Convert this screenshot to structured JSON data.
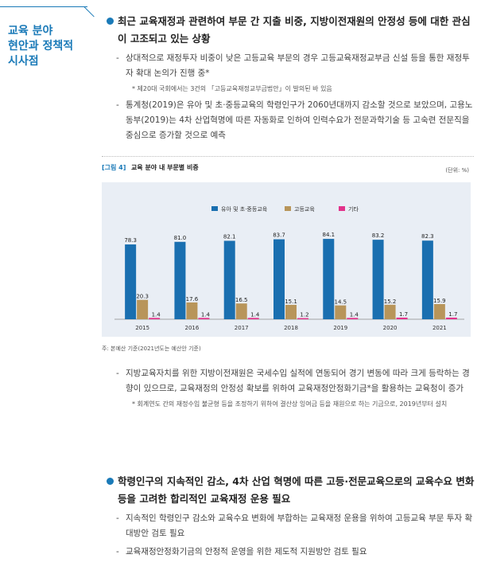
{
  "sidebar": {
    "title_lines": [
      "교육 분야",
      "현안과 정책적",
      "시사점"
    ]
  },
  "top": {
    "heading": "최근 교육재정과 관련하여 부문 간 지출 비중, 지방이전재원의 안정성 등에 대한 관심이 고조되고 있는 상황",
    "items": [
      {
        "text": "상대적으로 재정투자 비중이 낮은 고등교육 부문의 경우 고등교육재정교부금 신설 등을 통한 재정투자 확대 논의가 진행 중*"
      },
      {
        "note": "* 제20대 국회에서는 3건의 「고등교육재정교부금법안」이 발의된 바 있음"
      },
      {
        "text": "통계청(2019)은 유아 및 초·중등교육의 학령인구가 2060년대까지 감소할 것으로 보았으며, 고용노동부(2019)는 4차 산업혁명에 따른 자동화로 인하여 인력수요가 전문과학기술 등 고숙련 전문직을 중심으로 증가할 것으로 예측"
      }
    ]
  },
  "figure": {
    "label": "[그림 4]",
    "title": "교육 분야 내 부문별 비중",
    "unit": "(단위: %)",
    "source": "주: 본예산 기준(2021년도는 예산안 기준)"
  },
  "chart_data": {
    "type": "bar",
    "categories": [
      "2015",
      "2016",
      "2017",
      "2018",
      "2019",
      "2020",
      "2021"
    ],
    "series": [
      {
        "name": "유아 및 초·중등교육",
        "values": [
          78.3,
          81.0,
          82.1,
          83.7,
          84.1,
          83.2,
          82.3
        ],
        "color": "#1a6fb0"
      },
      {
        "name": "고등교육",
        "values": [
          20.3,
          17.6,
          16.5,
          15.1,
          14.5,
          15.2,
          15.9
        ],
        "color": "#b8955a"
      },
      {
        "name": "기타",
        "values": [
          1.4,
          1.4,
          1.4,
          1.2,
          1.4,
          1.7,
          1.7
        ],
        "color": "#e2338b"
      }
    ],
    "ylim": [
      0,
      100
    ],
    "grid": false,
    "legend": "top-center"
  },
  "middle": {
    "items": [
      {
        "text": "지방교육자치를 위한 지방이전재원은 국세수입 실적에 연동되어 경기 변동에 따라 크게 등락하는 경향이 있으므로, 교육재정의 안정성 확보를 위하여 교육재정안정화기금*을 활용하는 교육청이 증가"
      },
      {
        "note": "* 회계연도 간의 재정수입 불균형 등을 조정하기 위하여 결산상 잉여금 등을 재원으로 하는 기금으로, 2019년부터 설치"
      }
    ]
  },
  "bottom": {
    "heading": "학령인구의 지속적인 감소, 4차 산업 혁명에 따른 고등·전문교육으로의 교육수요 변화 등을 고려한 합리적인 교육재정 운용 필요",
    "items": [
      {
        "text": "지속적인 학령인구 감소와 교육수요 변화에 부합하는 교육재정 운용을 위하여 고등교육 부문 투자 확대방안 검토 필요"
      },
      {
        "text": "교육재정안정화기금의 안정적 운영을 위한 제도적 지원방안 검토 필요"
      }
    ]
  },
  "colors": {
    "accent": "#1a7ab8",
    "chart_bg": "#e9eef5"
  }
}
